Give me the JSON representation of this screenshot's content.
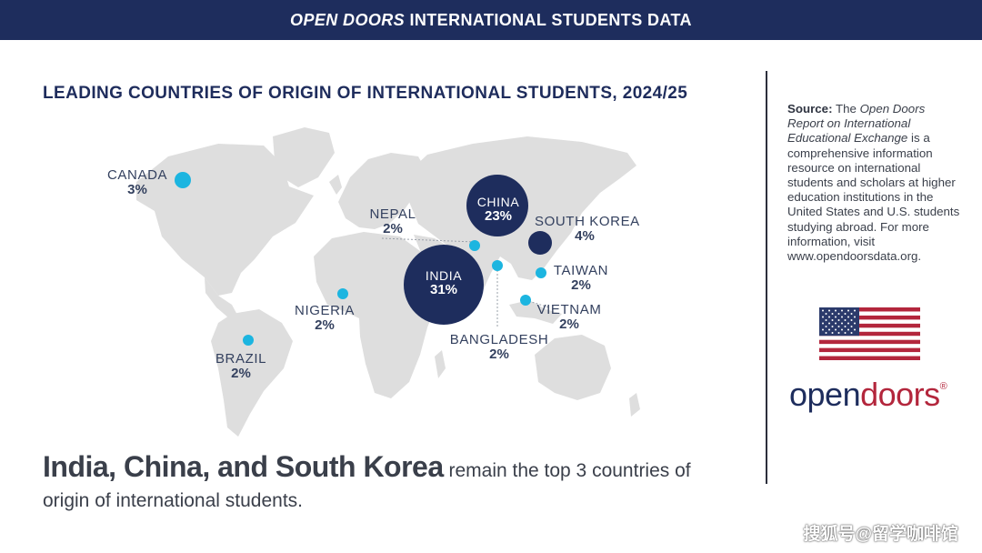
{
  "banner": {
    "italic": "OPEN DOORS",
    "rest": " INTERNATIONAL STUDENTS DATA"
  },
  "map_title": "LEADING COUNTRIES OF ORIGIN OF INTERNATIONAL STUDENTS, 2024/25",
  "countries": {
    "canada": {
      "name": "CANADA",
      "pct": "3%",
      "value": 3
    },
    "nepal": {
      "name": "NEPAL",
      "pct": "2%",
      "value": 2
    },
    "china": {
      "name": "CHINA",
      "pct": "23%",
      "value": 23
    },
    "south_korea": {
      "name": "SOUTH KOREA",
      "pct": "4%",
      "value": 4
    },
    "india": {
      "name": "INDIA",
      "pct": "31%",
      "value": 31
    },
    "taiwan": {
      "name": "TAIWAN",
      "pct": "2%",
      "value": 2
    },
    "nigeria": {
      "name": "NIGERIA",
      "pct": "2%",
      "value": 2
    },
    "vietnam": {
      "name": "VIETNAM",
      "pct": "2%",
      "value": 2
    },
    "bangladesh": {
      "name": "BANGLADESH",
      "pct": "2%",
      "value": 2
    },
    "brazil": {
      "name": "BRAZIL",
      "pct": "2%",
      "value": 2
    }
  },
  "colors": {
    "navy": "#1e2d5d",
    "bubble_small": "#1cb5e0",
    "land": "#dedede",
    "logo_red": "#b3263c"
  },
  "source": {
    "label": "Source:",
    "t1": " The ",
    "italic": "Open Doors Report on International Educational Exchange",
    "t2": " is a comprehensive information resource on international students and scholars at higher education institutions in the United States and U.S. students studying abroad. For more information, visit www.opendoorsdata.org."
  },
  "logo": {
    "open": "open",
    "doors": "doors",
    "reg": "®"
  },
  "headline": {
    "bold": "India, China, and South Korea",
    "rest": " remain the top 3 countries of origin of international students."
  },
  "watermark": "搜狐号@留学咖啡馆"
}
